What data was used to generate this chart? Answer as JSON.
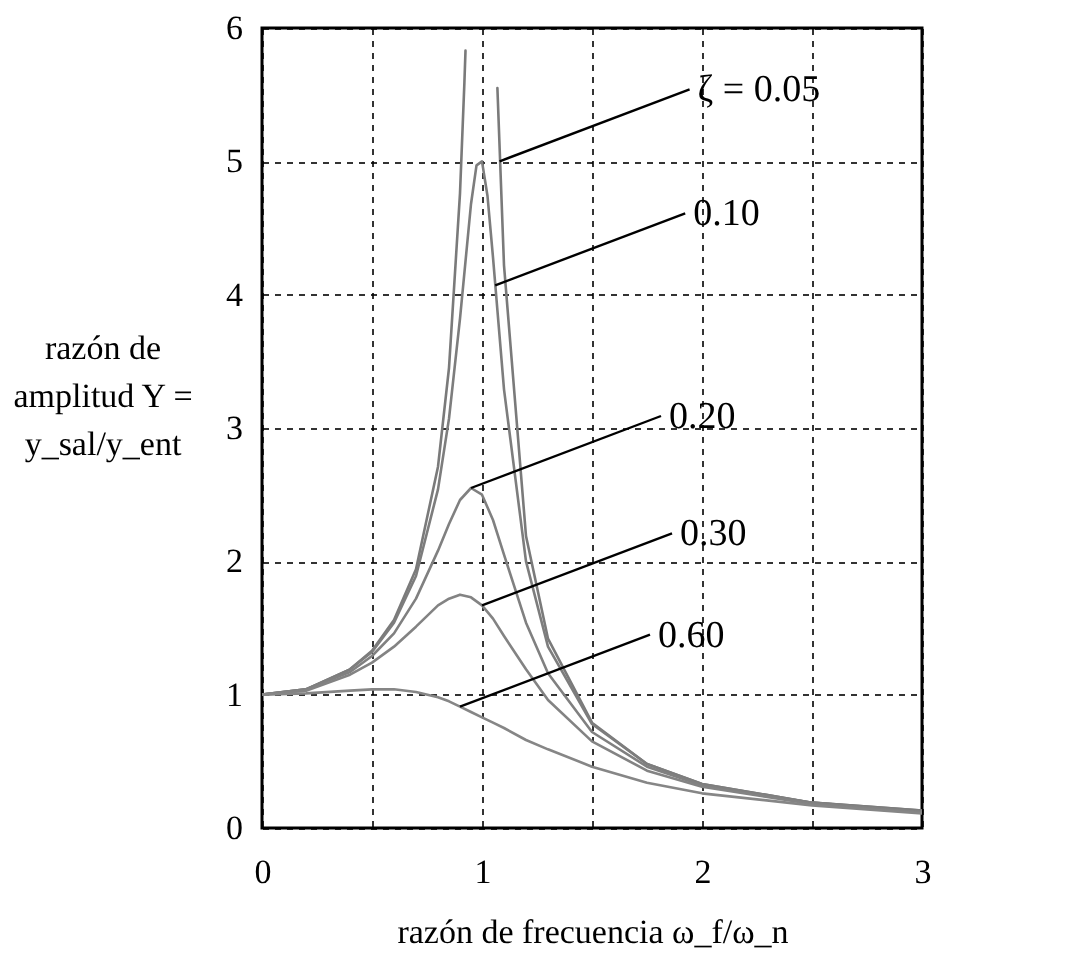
{
  "chart_data": {
    "type": "line",
    "xlabel": "razón de frecuencia ω_f/ω_n",
    "ylabel": "razón de amplitud Y = y_sal/y_ent",
    "xlim": [
      0,
      3
    ],
    "ylim": [
      0,
      6
    ],
    "xticks": [
      0,
      {
        "value": 0.5,
        "label": null
      },
      1,
      {
        "value": 1.5,
        "label": null
      },
      2,
      {
        "value": 2.5,
        "label": null
      },
      3
    ],
    "yticks": [
      0,
      1,
      2,
      3,
      4,
      5,
      6
    ],
    "grid": true,
    "legend": false,
    "x": [
      0,
      0.2,
      0.4,
      0.5,
      0.6,
      0.7,
      0.8,
      0.85,
      0.9,
      0.95,
      1.0,
      1.05,
      1.1,
      1.2,
      1.3,
      1.5,
      1.75,
      2,
      2.5,
      3
    ],
    "series": [
      {
        "color": "#7a7a7a",
        "x": [
          0,
          0.2,
          0.4,
          0.5,
          0.6,
          0.7,
          0.8,
          0.85,
          0.9,
          0.92,
          0.925,
          0.95,
          1.0,
          1.05,
          1.06,
          1.07,
          1.1,
          1.2,
          1.3,
          1.5,
          1.75,
          2,
          2.5,
          3
        ],
        "values": [
          1,
          1.04,
          1.19,
          1.33,
          1.56,
          1.94,
          2.71,
          3.45,
          4.76,
          5.59,
          5.83,
          null,
          null,
          null,
          null,
          5.55,
          4.22,
          2.19,
          1.42,
          0.79,
          0.48,
          0.33,
          0.19,
          0.13
        ]
      },
      {
        "color": "#7d7d7d",
        "x": [
          0,
          0.2,
          0.4,
          0.5,
          0.6,
          0.7,
          0.8,
          0.85,
          0.9,
          0.95,
          0.975,
          1.0,
          1.025,
          1.05,
          1.1,
          1.2,
          1.3,
          1.5,
          1.75,
          2,
          2.5,
          3
        ],
        "values": [
          1,
          1.04,
          1.19,
          1.32,
          1.54,
          1.89,
          2.54,
          3.07,
          3.82,
          4.68,
          4.97,
          5.0,
          4.74,
          4.28,
          3.29,
          2.0,
          1.36,
          0.78,
          0.48,
          0.33,
          0.19,
          0.13
        ]
      },
      {
        "color": "#808080",
        "values": [
          1,
          1.04,
          1.17,
          1.29,
          1.46,
          1.72,
          2.08,
          2.28,
          2.46,
          2.55,
          2.5,
          2.31,
          2.05,
          1.54,
          1.16,
          0.72,
          0.46,
          0.32,
          0.19,
          0.12
        ]
      },
      {
        "color": "#838383",
        "values": [
          1,
          1.03,
          1.15,
          1.24,
          1.36,
          1.51,
          1.67,
          1.72,
          1.75,
          1.73,
          1.67,
          1.57,
          1.44,
          1.19,
          0.96,
          0.65,
          0.43,
          0.31,
          0.18,
          0.12
        ]
      },
      {
        "color": "#868686",
        "values": [
          1,
          1.01,
          1.03,
          1.04,
          1.04,
          1.02,
          0.98,
          0.95,
          0.91,
          0.87,
          0.83,
          0.79,
          0.75,
          0.66,
          0.59,
          0.46,
          0.34,
          0.26,
          0.17,
          0.11
        ]
      }
    ],
    "annotations": [
      {
        "text": "ζ = 0.05",
        "x": 1.08,
        "y": 5.0
      },
      {
        "text": "0.10",
        "x": 1.06,
        "y": 4.07
      },
      {
        "text": "0.20",
        "x": 0.95,
        "y": 2.55
      },
      {
        "text": "0.30",
        "x": 1.0,
        "y": 1.67
      },
      {
        "text": "0.60",
        "x": 0.9,
        "y": 0.91
      }
    ]
  }
}
